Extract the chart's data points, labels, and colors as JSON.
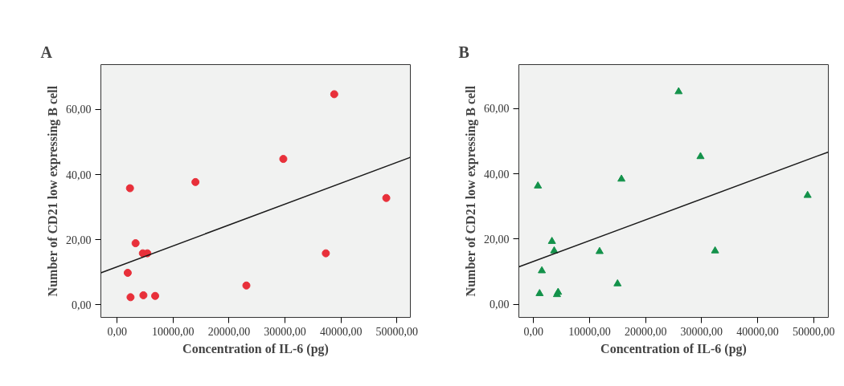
{
  "chart_data": [
    {
      "type": "scatter",
      "title": "A",
      "xlabel": "Concentration of IL-6 (pg)",
      "ylabel": "Number of CD21 low expressing B cell",
      "xlim": [
        -2900,
        52400
      ],
      "ylim": [
        -3.9,
        73.8
      ],
      "xticks": [
        {
          "value": 0,
          "label": "0,00"
        },
        {
          "value": 10000,
          "label": "10000,00"
        },
        {
          "value": 20000,
          "label": "20000,00"
        },
        {
          "value": 30000,
          "label": "30000,00"
        },
        {
          "value": 40000,
          "label": "40000,00"
        },
        {
          "value": 50000,
          "label": "50000,00"
        }
      ],
      "yticks": [
        {
          "value": 0,
          "label": "0,00"
        },
        {
          "value": 20,
          "label": "20,00"
        },
        {
          "value": 40,
          "label": "40,00"
        },
        {
          "value": 60,
          "label": "60,00"
        }
      ],
      "grid": false,
      "series": [
        {
          "type": "scatter",
          "marker": "circle",
          "color": "#e8303a",
          "x": [
            2300,
            1900,
            2400,
            3300,
            4600,
            5400,
            4700,
            6800,
            14000,
            23100,
            29700,
            37300,
            38800,
            48100
          ],
          "values": [
            35.8,
            9.8,
            2.3,
            18.9,
            15.8,
            15.8,
            2.9,
            2.7,
            37.7,
            5.9,
            44.8,
            15.8,
            64.7,
            32.8
          ]
        },
        {
          "type": "line",
          "marker": "none",
          "line_style": "solid",
          "color": "#1a1a1a",
          "x": [
            -2900,
            52400
          ],
          "values": [
            9.8,
            45.3
          ]
        }
      ]
    },
    {
      "type": "scatter",
      "title": "B",
      "xlabel": "Concentration of IL-6 (pg)",
      "ylabel": "Number of CD21 low expressing B cell",
      "xlim": [
        -2600,
        52600
      ],
      "ylim": [
        -4.0,
        73.5
      ],
      "xticks": [
        {
          "value": 0,
          "label": "0,00"
        },
        {
          "value": 10000,
          "label": "10000,00"
        },
        {
          "value": 20000,
          "label": "20000,00"
        },
        {
          "value": 30000,
          "label": "30000,00"
        },
        {
          "value": 40000,
          "label": "40000,00"
        },
        {
          "value": 50000,
          "label": "50000,00"
        }
      ],
      "yticks": [
        {
          "value": 0,
          "label": "0,00"
        },
        {
          "value": 20,
          "label": "20,00"
        },
        {
          "value": 40,
          "label": "40,00"
        },
        {
          "value": 60,
          "label": "60,00"
        }
      ],
      "grid": false,
      "series": [
        {
          "type": "scatter",
          "marker": "triangle",
          "color": "#13924a",
          "x": [
            800,
            1500,
            1100,
            3300,
            3700,
            4400,
            4200,
            11800,
            15000,
            15700,
            25900,
            29800,
            32400,
            48900
          ],
          "values": [
            36.3,
            10.3,
            3.3,
            19.3,
            16.4,
            3.7,
            3.0,
            16.2,
            6.3,
            38.4,
            65.2,
            45.3,
            16.4,
            33.4
          ]
        },
        {
          "type": "line",
          "marker": "none",
          "line_style": "solid",
          "color": "#1a1a1a",
          "x": [
            -2600,
            52600
          ],
          "values": [
            11.5,
            46.7
          ]
        }
      ]
    }
  ]
}
